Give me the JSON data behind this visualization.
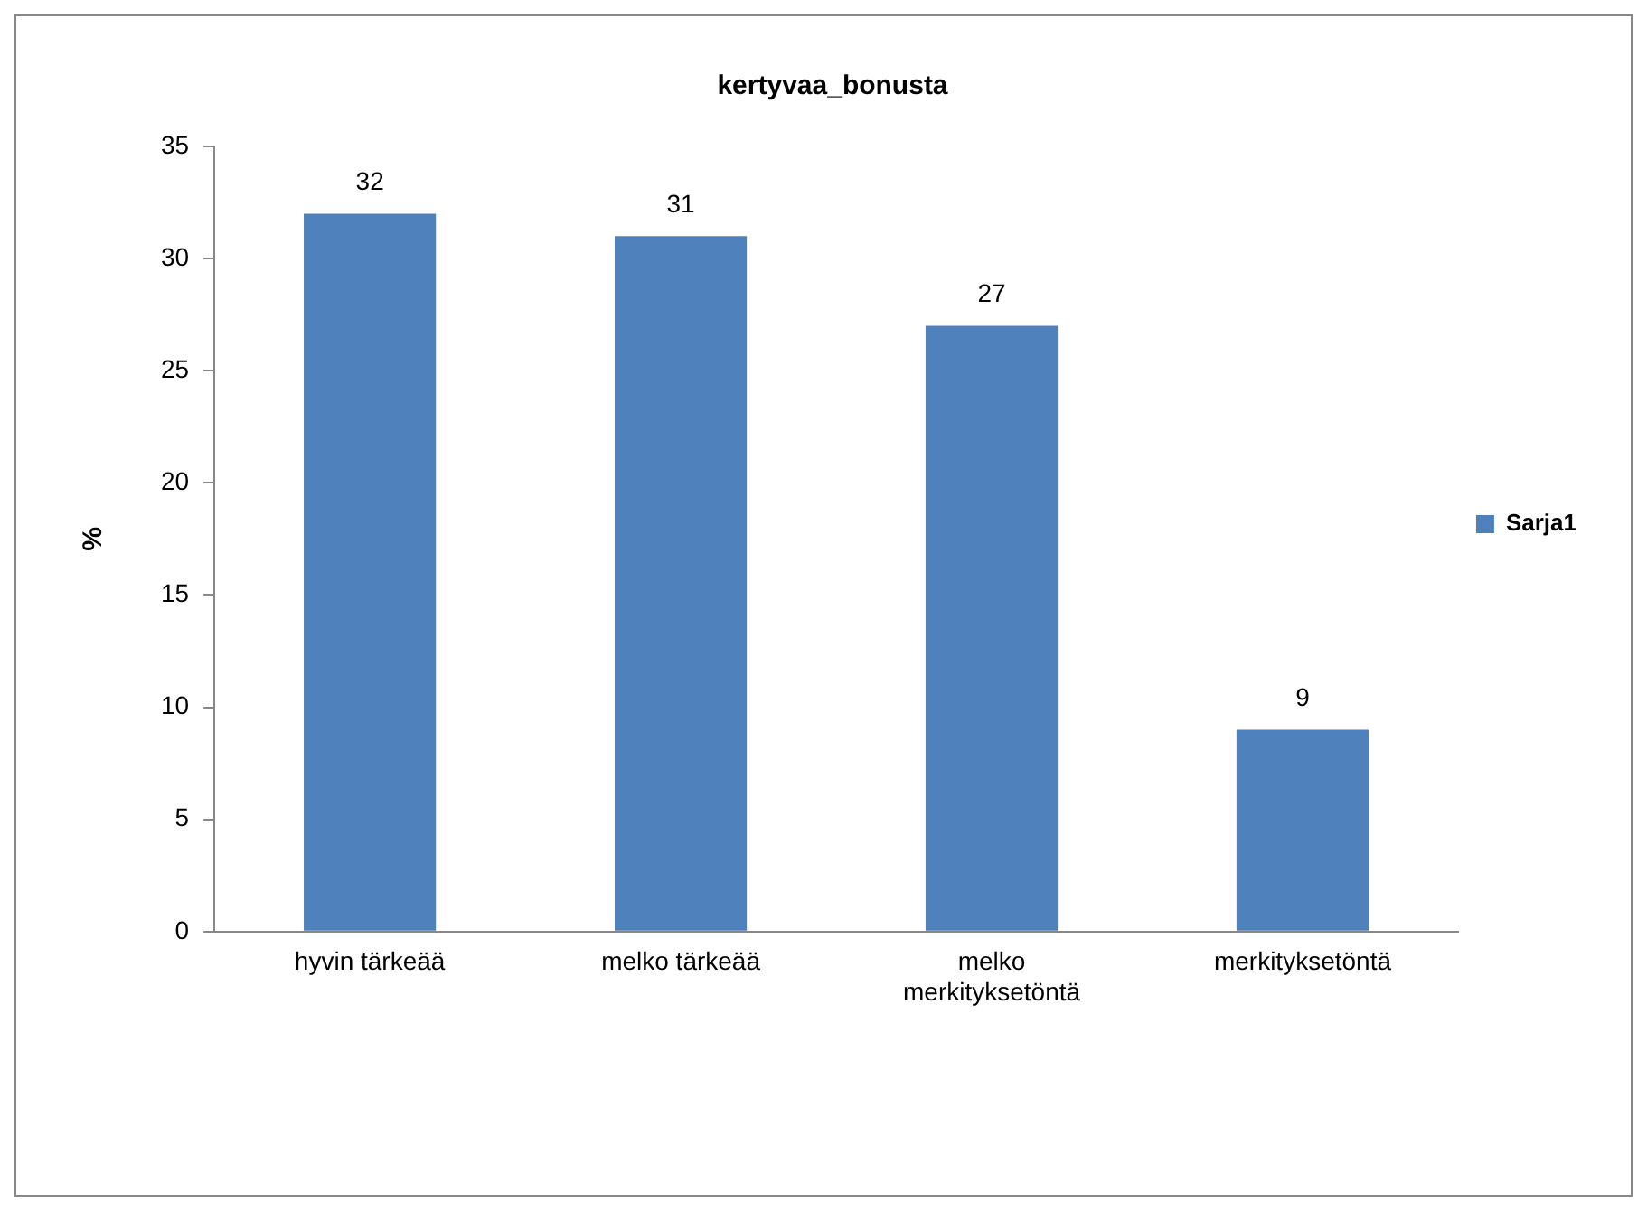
{
  "chart_data": {
    "type": "bar",
    "title": "kertyvaa_bonusta",
    "ylabel": "%",
    "categories": [
      "hyvin tärkeää",
      "melko tärkeää",
      "melko merkityksetöntä",
      "merkityksetöntä"
    ],
    "series": [
      {
        "name": "Sarja1",
        "color": "#4f81bd",
        "values": [
          32,
          31,
          27,
          9
        ]
      }
    ],
    "ylim": [
      0,
      35
    ],
    "yticks": [
      0,
      5,
      10,
      15,
      20,
      25,
      30,
      35
    ],
    "grid": false,
    "legend": "right",
    "data_labels": true
  }
}
